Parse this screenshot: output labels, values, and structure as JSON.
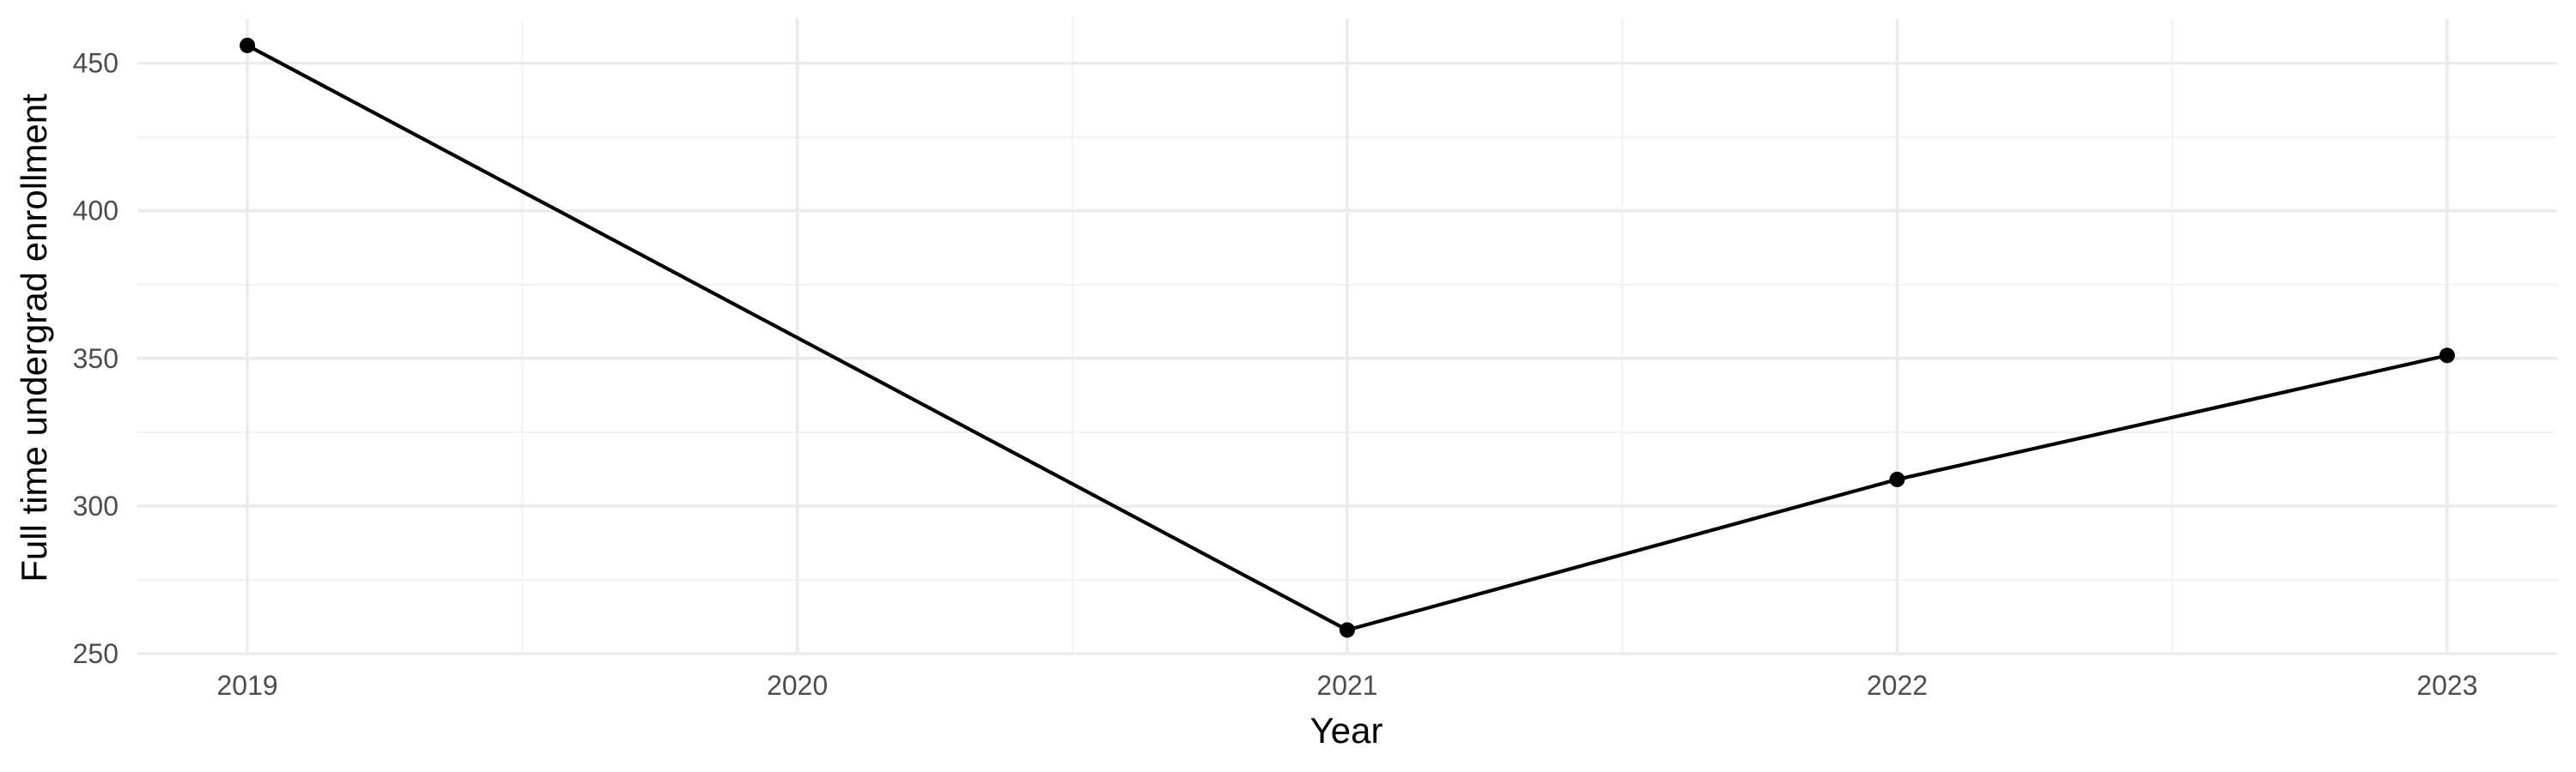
{
  "chart_data": {
    "type": "line",
    "title": "",
    "xlabel": "Year",
    "ylabel": "Full time undergrad enrollment",
    "x": [
      2019,
      2020,
      2021,
      2022,
      2023
    ],
    "series": [
      {
        "x": [
          2019,
          2021,
          2022,
          2023
        ],
        "values": [
          456,
          258,
          309,
          351
        ],
        "color": "#000000"
      }
    ],
    "xticks": [
      "2019",
      "2020",
      "2021",
      "2022",
      "2023"
    ],
    "yticks": [
      250,
      300,
      350,
      400,
      450
    ],
    "xlim": [
      2018.8,
      2023.2
    ],
    "ylim": [
      250,
      465
    ],
    "grid": true,
    "legend": "none"
  }
}
